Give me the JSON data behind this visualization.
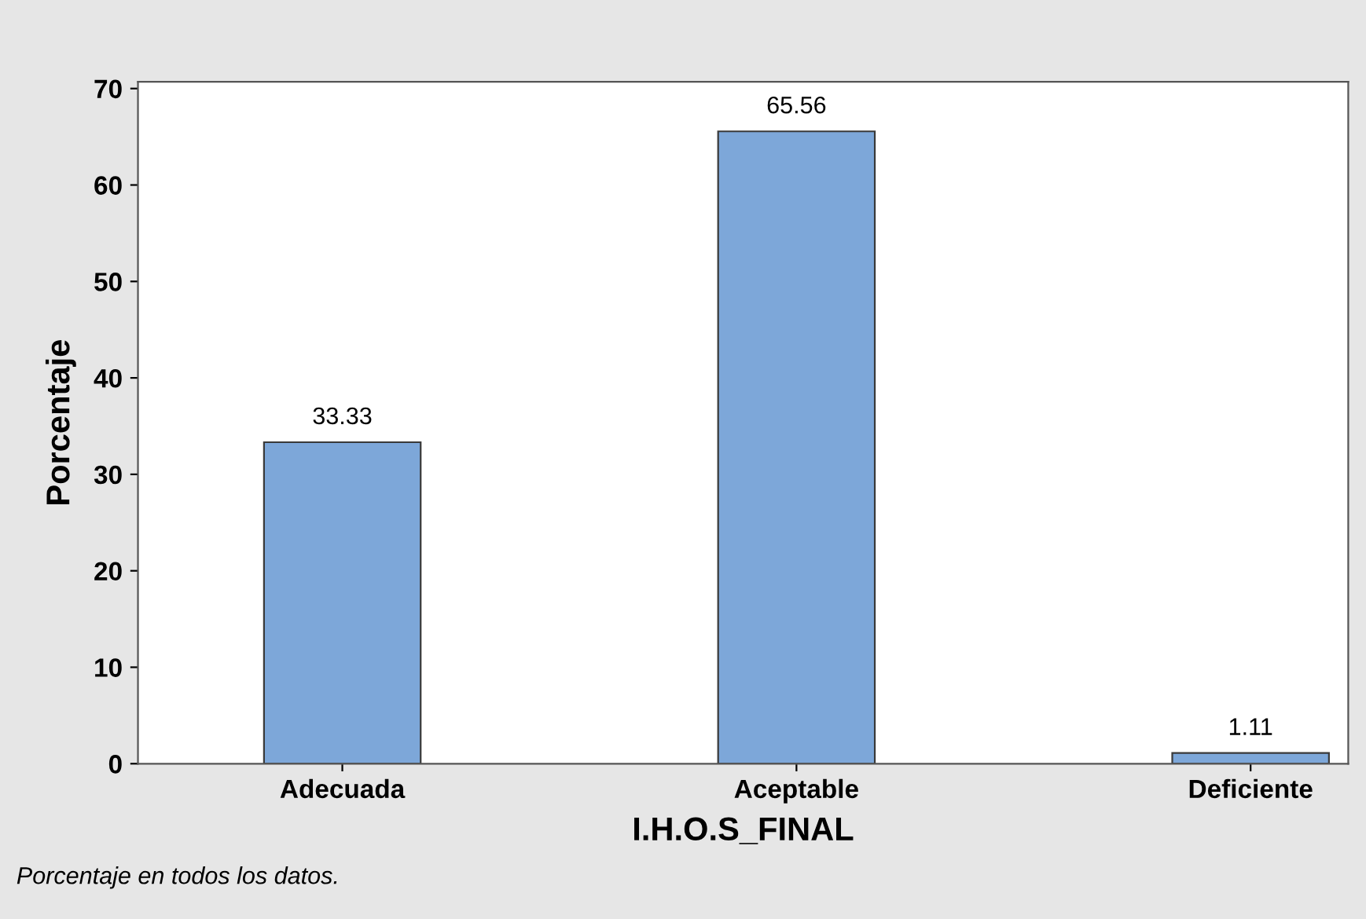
{
  "chart_data": {
    "type": "bar",
    "categories": [
      "Adecuada",
      "Aceptable",
      "Deficiente"
    ],
    "values": [
      33.33,
      65.56,
      1.11
    ],
    "color": "#7da7d9",
    "xlabel": "I.H.O.S_FINAL",
    "ylabel": "Porcentaje",
    "ylim": [
      0,
      70.7
    ],
    "yticks": [
      0,
      10,
      20,
      30,
      40,
      50,
      60,
      70
    ],
    "data_labels": true,
    "grid": false,
    "legend": false,
    "annotations": [
      "Porcentaje en todos los datos."
    ]
  }
}
